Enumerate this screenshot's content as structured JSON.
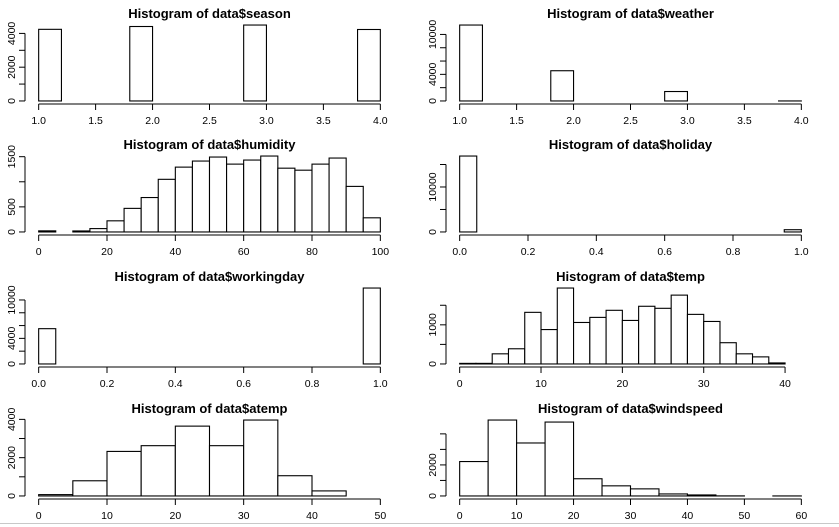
{
  "chart_data": [
    {
      "type": "bar",
      "title": "Histogram of data$season",
      "xlabel": "",
      "ylabel": "",
      "break_start": 1.0,
      "break_width": 0.2,
      "counts": [
        4242,
        0,
        0,
        0,
        4409,
        0,
        0,
        0,
        0,
        4496,
        0,
        0,
        0,
        0,
        4232
      ],
      "xticks": [
        1.0,
        1.5,
        2.0,
        2.5,
        3.0,
        3.5,
        4.0
      ],
      "xtick_labels": [
        "1.0",
        "1.5",
        "2.0",
        "2.5",
        "3.0",
        "3.5",
        "4.0"
      ],
      "yticks": [
        0,
        1000,
        2000,
        3000,
        4000
      ],
      "ytick_labels": [
        "0",
        "",
        "2000",
        "",
        "4000"
      ]
    },
    {
      "type": "bar",
      "title": "Histogram of data$weather",
      "xlabel": "",
      "ylabel": "",
      "break_start": 1.0,
      "break_width": 0.2,
      "counts": [
        11413,
        0,
        0,
        0,
        4544,
        0,
        0,
        0,
        0,
        1419,
        0,
        0,
        0,
        0,
        3
      ],
      "xticks": [
        1.0,
        1.5,
        2.0,
        2.5,
        3.0,
        3.5,
        4.0
      ],
      "xtick_labels": [
        "1.0",
        "1.5",
        "2.0",
        "2.5",
        "3.0",
        "3.5",
        "4.0"
      ],
      "yticks": [
        0,
        2000,
        4000,
        6000,
        8000,
        10000
      ],
      "ytick_labels": [
        "0",
        "",
        "4000",
        "",
        "",
        "10000"
      ]
    },
    {
      "type": "bar",
      "title": "Histogram of data$humidity",
      "xlabel": "",
      "ylabel": "",
      "break_start": 0,
      "break_width": 5,
      "counts": [
        22,
        0,
        20,
        67,
        222,
        470,
        686,
        1049,
        1292,
        1413,
        1493,
        1352,
        1433,
        1513,
        1271,
        1231,
        1352,
        1473,
        908,
        282
      ],
      "xticks": [
        0,
        20,
        40,
        60,
        80,
        100
      ],
      "xtick_labels": [
        "0",
        "20",
        "40",
        "60",
        "80",
        "100"
      ],
      "yticks": [
        0,
        500,
        1000,
        1500
      ],
      "ytick_labels": [
        "0",
        "500",
        "",
        "1500"
      ]
    },
    {
      "type": "bar",
      "title": "Histogram of data$holiday",
      "xlabel": "",
      "ylabel": "",
      "break_start": 0,
      "break_width": 0.05,
      "counts": [
        16879,
        0,
        0,
        0,
        0,
        0,
        0,
        0,
        0,
        0,
        0,
        0,
        0,
        0,
        0,
        0,
        0,
        0,
        0,
        500
      ],
      "xticks": [
        0,
        0.2,
        0.4,
        0.6,
        0.8,
        1.0
      ],
      "xtick_labels": [
        "0.0",
        "0.2",
        "0.4",
        "0.6",
        "0.8",
        "1.0"
      ],
      "yticks": [
        0,
        5000,
        10000,
        15000
      ],
      "ytick_labels": [
        "0",
        "",
        "10000",
        ""
      ]
    },
    {
      "type": "bar",
      "title": "Histogram of data$workingday",
      "xlabel": "",
      "ylabel": "",
      "break_start": 0,
      "break_width": 0.05,
      "counts": [
        5514,
        0,
        0,
        0,
        0,
        0,
        0,
        0,
        0,
        0,
        0,
        0,
        0,
        0,
        0,
        0,
        0,
        0,
        0,
        11865
      ],
      "xticks": [
        0,
        0.2,
        0.4,
        0.6,
        0.8,
        1.0
      ],
      "xtick_labels": [
        "0.0",
        "0.2",
        "0.4",
        "0.6",
        "0.8",
        "1.0"
      ],
      "yticks": [
        0,
        2000,
        4000,
        6000,
        8000,
        10000
      ],
      "ytick_labels": [
        "0",
        "",
        "4000",
        "",
        "",
        "10000"
      ]
    },
    {
      "type": "bar",
      "title": "Histogram of data$temp",
      "xlabel": "",
      "ylabel": "",
      "break_start": 0,
      "break_width": 2,
      "counts": [
        15,
        15,
        259,
        388,
        1319,
        879,
        1940,
        1060,
        1190,
        1371,
        1112,
        1474,
        1422,
        1759,
        1267,
        1086,
        543,
        259,
        181,
        26,
        0
      ],
      "xticks": [
        0,
        10,
        20,
        30,
        40
      ],
      "xtick_labels": [
        "0",
        "10",
        "20",
        "30",
        "40"
      ],
      "yticks": [
        0,
        500,
        1000,
        1500
      ],
      "ytick_labels": [
        "0",
        "",
        "1000",
        ""
      ]
    },
    {
      "type": "bar",
      "title": "Histogram of data$atemp",
      "xlabel": "",
      "ylabel": "",
      "break_start": 0,
      "break_width": 5,
      "counts": [
        70,
        793,
        2326,
        2626,
        3647,
        2626,
        3965,
        1057,
        264,
        0
      ],
      "xticks": [
        0,
        10,
        20,
        30,
        40,
        50
      ],
      "xtick_labels": [
        "0",
        "10",
        "20",
        "30",
        "40",
        "50"
      ],
      "yticks": [
        0,
        1000,
        2000,
        3000,
        4000
      ],
      "ytick_labels": [
        "0",
        "",
        "2000",
        "",
        "4000"
      ]
    },
    {
      "type": "bar",
      "title": "Histogram of data$windspeed",
      "xlabel": "",
      "ylabel": "",
      "break_start": 0,
      "break_width": 5,
      "counts": [
        2217,
        4891,
        3413,
        4761,
        1109,
        652,
        457,
        130,
        65,
        5,
        0,
        2
      ],
      "xticks": [
        0,
        10,
        20,
        30,
        40,
        50,
        60
      ],
      "xtick_labels": [
        "0",
        "10",
        "20",
        "30",
        "40",
        "50",
        "60"
      ],
      "yticks": [
        0,
        1000,
        2000,
        3000,
        4000
      ],
      "ytick_labels": [
        "0",
        "",
        "2000",
        "",
        ""
      ]
    }
  ]
}
